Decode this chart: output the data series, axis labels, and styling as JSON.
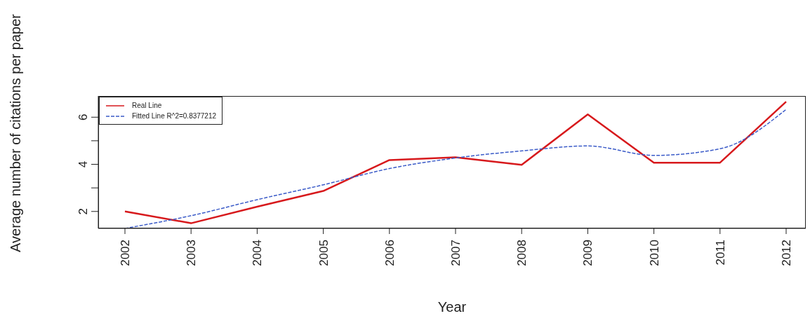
{
  "chart_data": {
    "type": "line",
    "xlabel": "Year",
    "ylabel": "Average number of citations per paper",
    "categories": [
      "2002",
      "2003",
      "2004",
      "2005",
      "2006",
      "2007",
      "2008",
      "2009",
      "2010",
      "2011",
      "2012"
    ],
    "series": [
      {
        "name": "Real Line",
        "color": "#d7191c",
        "line_style": "solid",
        "values": [
          2.0,
          1.5,
          2.2,
          2.87,
          4.18,
          4.3,
          3.98,
          6.12,
          4.07,
          4.07,
          6.66
        ]
      },
      {
        "name": "Fitted Line R^2=0.8377212",
        "color": "#3b5bc8",
        "line_style": "dashed",
        "values": [
          1.28,
          1.82,
          2.5,
          3.13,
          3.82,
          4.27,
          4.57,
          4.78,
          4.38,
          4.66,
          6.33
        ]
      }
    ],
    "ylim": [
      1.28,
      6.9
    ],
    "yticks": [
      2,
      {
        "value": 3,
        "label": null
      },
      4,
      {
        "value": 5,
        "label": null
      },
      6
    ],
    "grid": false,
    "legend": "top left",
    "marker": "none"
  }
}
